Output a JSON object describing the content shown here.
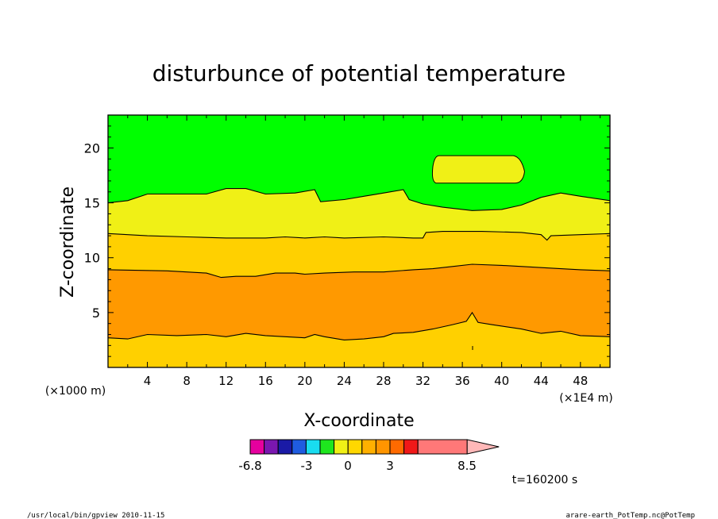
{
  "chart_data": {
    "type": "heatmap",
    "title": "disturbunce of potential temperature",
    "xlabel": "X-coordinate",
    "ylabel": "Z-coordinate",
    "x_unit": "(×1E4 m)",
    "y_unit": "(×1000 m)",
    "xlim": [
      0,
      51
    ],
    "ylim": [
      0,
      23
    ],
    "x_ticks": [
      "4",
      "8",
      "12",
      "16",
      "20",
      "24",
      "28",
      "32",
      "36",
      "40",
      "44",
      "48"
    ],
    "y_ticks": [
      "5",
      "10",
      "15",
      "20"
    ],
    "grid": false,
    "colorbar": {
      "tick_labels": [
        "-6.8",
        "-3",
        "0",
        "3",
        "8.5"
      ],
      "colors": [
        "#e6009e",
        "#7a17b0",
        "#1a1aa6",
        "#1f5ce0",
        "#19dcf0",
        "#1ee61e",
        "#f0f016",
        "#ffd700",
        "#ffb000",
        "#ff9500",
        "#ff6a00",
        "#f01818",
        "#ff7878",
        "#ffb8b8"
      ],
      "extend": "max"
    },
    "regions": [
      {
        "level": "orange",
        "color": "#ff9900",
        "top_z": [
          [
            0,
            8.9
          ],
          [
            6,
            8.8
          ],
          [
            10,
            8.6
          ],
          [
            11.5,
            8.2
          ],
          [
            13,
            8.3
          ],
          [
            15,
            8.3
          ],
          [
            17,
            8.6
          ],
          [
            19,
            8.6
          ],
          [
            20,
            8.5
          ],
          [
            22,
            8.6
          ],
          [
            25,
            8.7
          ],
          [
            28,
            8.7
          ],
          [
            31,
            8.9
          ],
          [
            33,
            9.0
          ],
          [
            35,
            9.2
          ],
          [
            37,
            9.4
          ],
          [
            40,
            9.3
          ],
          [
            44,
            9.1
          ],
          [
            48,
            8.9
          ],
          [
            51,
            8.8
          ]
        ],
        "bottom_z": [
          [
            0,
            2.7
          ],
          [
            2,
            2.6
          ],
          [
            4,
            3.0
          ],
          [
            7,
            2.9
          ],
          [
            10,
            3.0
          ],
          [
            12,
            2.8
          ],
          [
            14,
            3.1
          ],
          [
            16,
            2.9
          ],
          [
            18,
            2.8
          ],
          [
            20,
            2.7
          ],
          [
            21,
            3.0
          ],
          [
            22,
            2.8
          ],
          [
            24,
            2.5
          ],
          [
            26,
            2.6
          ],
          [
            28,
            2.8
          ],
          [
            29,
            3.1
          ],
          [
            31,
            3.2
          ],
          [
            33,
            3.5
          ],
          [
            35,
            3.9
          ],
          [
            36.4,
            4.2
          ],
          [
            37,
            5.0
          ],
          [
            37.6,
            4.1
          ],
          [
            39,
            3.9
          ],
          [
            42,
            3.5
          ],
          [
            44,
            3.1
          ],
          [
            46,
            3.3
          ],
          [
            48,
            2.9
          ],
          [
            51,
            2.8
          ]
        ]
      },
      {
        "level": "yellow",
        "color": "#f0f016",
        "top_z": [
          [
            0,
            15.0
          ],
          [
            2,
            15.2
          ],
          [
            4,
            15.8
          ],
          [
            8,
            15.8
          ],
          [
            10,
            15.8
          ],
          [
            12,
            16.3
          ],
          [
            14,
            16.3
          ],
          [
            16,
            15.8
          ],
          [
            19,
            15.9
          ],
          [
            21,
            16.2
          ],
          [
            21.6,
            15.1
          ],
          [
            24,
            15.3
          ],
          [
            26,
            15.6
          ],
          [
            28,
            15.9
          ],
          [
            30,
            16.2
          ],
          [
            30.6,
            15.3
          ],
          [
            32,
            14.9
          ],
          [
            34,
            14.6
          ],
          [
            37,
            14.3
          ],
          [
            40,
            14.4
          ],
          [
            42,
            14.8
          ],
          [
            44,
            15.5
          ],
          [
            46,
            15.9
          ],
          [
            48,
            15.6
          ],
          [
            51,
            15.2
          ]
        ],
        "bottom_z": [
          [
            0,
            12.2
          ],
          [
            4,
            12.0
          ],
          [
            8,
            11.9
          ],
          [
            12,
            11.8
          ],
          [
            16,
            11.8
          ],
          [
            18,
            11.9
          ],
          [
            20,
            11.8
          ],
          [
            22,
            11.9
          ],
          [
            24,
            11.8
          ],
          [
            28,
            11.9
          ],
          [
            31,
            11.8
          ],
          [
            32,
            11.8
          ],
          [
            32.3,
            12.3
          ],
          [
            34,
            12.4
          ],
          [
            38,
            12.4
          ],
          [
            42,
            12.3
          ],
          [
            44,
            12.1
          ],
          [
            44.6,
            11.6
          ],
          [
            45,
            12.0
          ],
          [
            48,
            12.1
          ],
          [
            51,
            12.2
          ]
        ]
      }
    ],
    "cells": [
      {
        "color": "#f0f016",
        "x": [
          33,
          42
        ],
        "z": [
          16.8,
          19.3
        ]
      }
    ]
  },
  "annotations": {
    "time_label": "t=160200 s",
    "footer_left": "/usr/local/bin/gpview  2010-11-15",
    "footer_right": "arare-earth_PotTemp.nc@PotTemp"
  }
}
